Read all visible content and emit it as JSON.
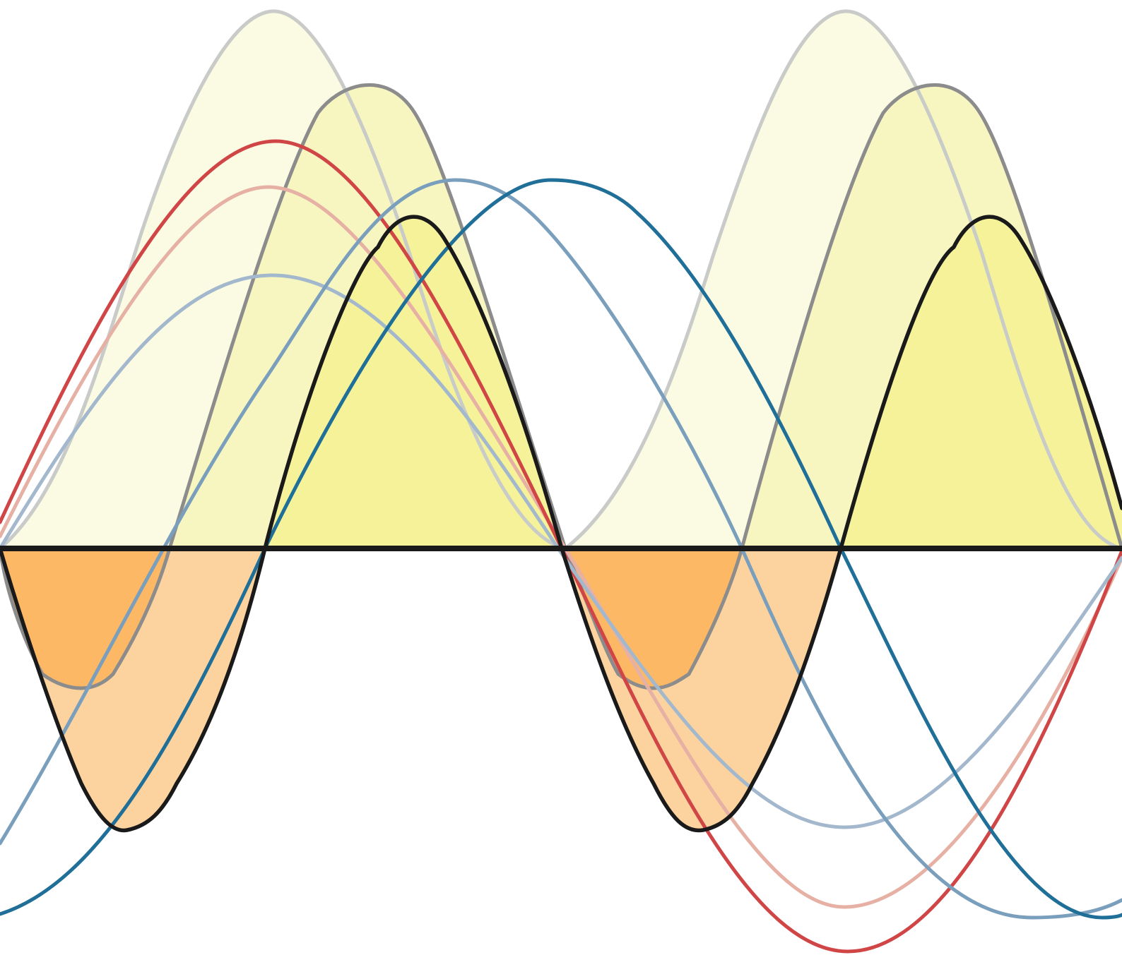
{
  "diagram": {
    "kind": "superposition-of-sinusoidal-waves",
    "labels": [],
    "colors": {
      "background": "#ffffff",
      "axis": "#1a1a1a",
      "resultant_curve": "#1a1a1a",
      "positive_fill_dark": "#f5f29a",
      "positive_fill_light": "#fafbe2",
      "negative_fill_dark": "#fcb865",
      "negative_fill_light": "#fcd39e",
      "gray_light": "#c8cbc8",
      "gray_mid": "#8c8c8c",
      "red": "#d04545",
      "pink": "#e6b1a4",
      "blue_light": "#a3b8cd",
      "blue_mid": "#7a9fbd",
      "blue_dark": "#1f6f98"
    },
    "curves": [
      {
        "name": "blue-dark",
        "color": "#1f6f98"
      },
      {
        "name": "blue-mid",
        "color": "#7a9fbd"
      },
      {
        "name": "blue-light",
        "color": "#a3b8cd"
      },
      {
        "name": "red",
        "color": "#d04545"
      },
      {
        "name": "pink",
        "color": "#e6b1a4"
      },
      {
        "name": "gray-light",
        "color": "#c8cbc8"
      },
      {
        "name": "gray-mid",
        "color": "#8c8c8c"
      },
      {
        "name": "black",
        "color": "#1a1a1a"
      }
    ]
  }
}
